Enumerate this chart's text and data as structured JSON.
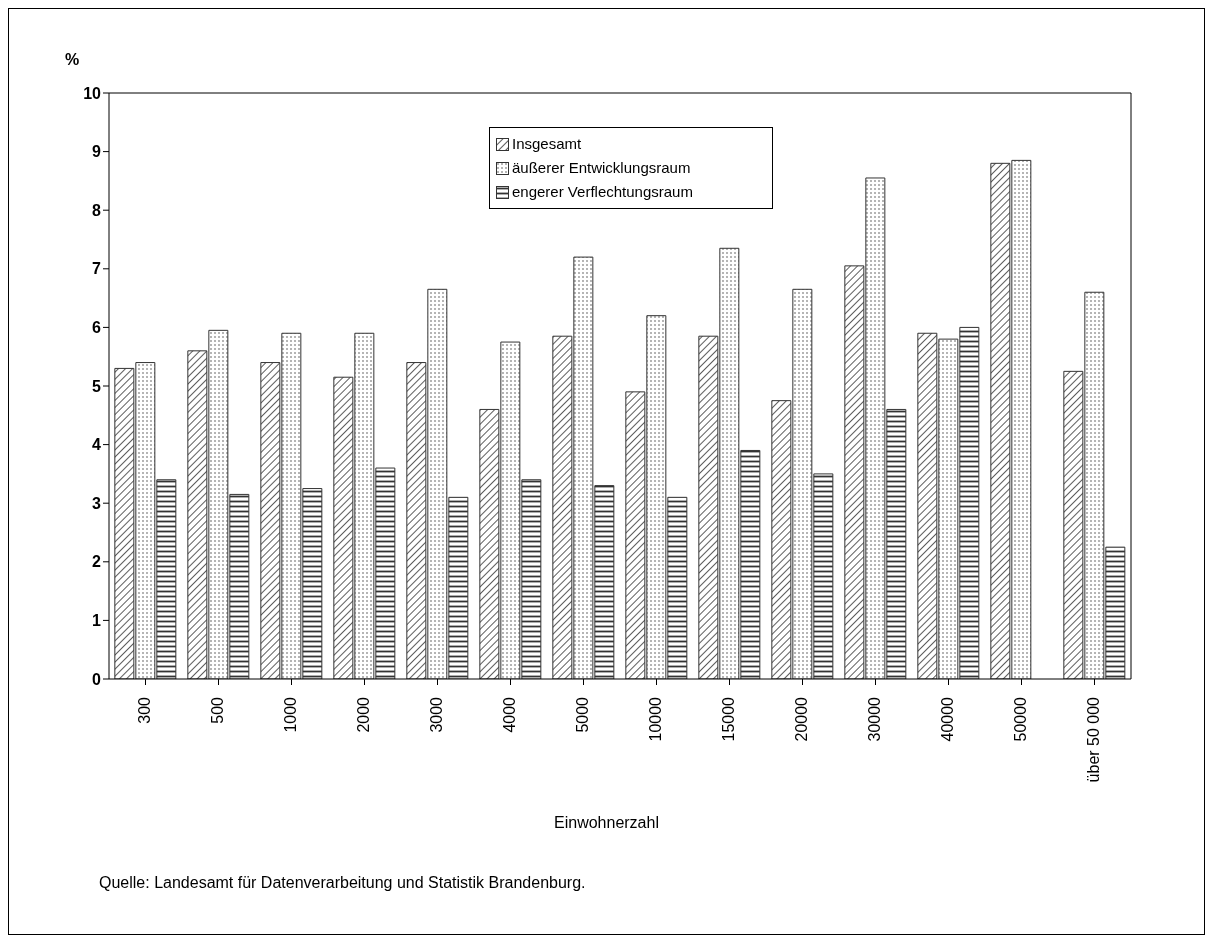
{
  "chart_data": {
    "type": "bar",
    "ylabel": "%",
    "xlabel": "Einwohnerzahl",
    "categories": [
      "300",
      "500",
      "1000",
      "2000",
      "3000",
      "4000",
      "5000",
      "10000",
      "15000",
      "20000",
      "30000",
      "40000",
      "50000",
      "über 50 000"
    ],
    "series": [
      {
        "name": "Insgesamt",
        "color": "#333333",
        "values": [
          5.3,
          5.6,
          5.4,
          5.15,
          5.4,
          4.6,
          5.85,
          4.9,
          5.85,
          4.75,
          7.05,
          5.9,
          8.8,
          5.25
        ]
      },
      {
        "name": "äußerer Entwicklungsraum",
        "color": "#333333",
        "values": [
          5.4,
          5.95,
          5.9,
          5.9,
          6.65,
          5.75,
          7.2,
          6.2,
          7.35,
          6.65,
          8.55,
          5.8,
          8.85,
          6.6
        ]
      },
      {
        "name": "engerer Verflechtungsraum",
        "color": "#333333",
        "values": [
          3.4,
          3.15,
          3.25,
          3.6,
          3.1,
          3.4,
          3.3,
          3.1,
          3.9,
          3.5,
          4.6,
          6.0,
          null,
          2.25
        ]
      }
    ],
    "ylim": [
      0,
      10
    ],
    "yticks": [
      0,
      1,
      2,
      3,
      4,
      5,
      6,
      7,
      8,
      9,
      10
    ],
    "legend": "top",
    "annotations": [
      "Quelle: Landesamt für Datenverarbeitung und Statistik Brandenburg."
    ]
  }
}
